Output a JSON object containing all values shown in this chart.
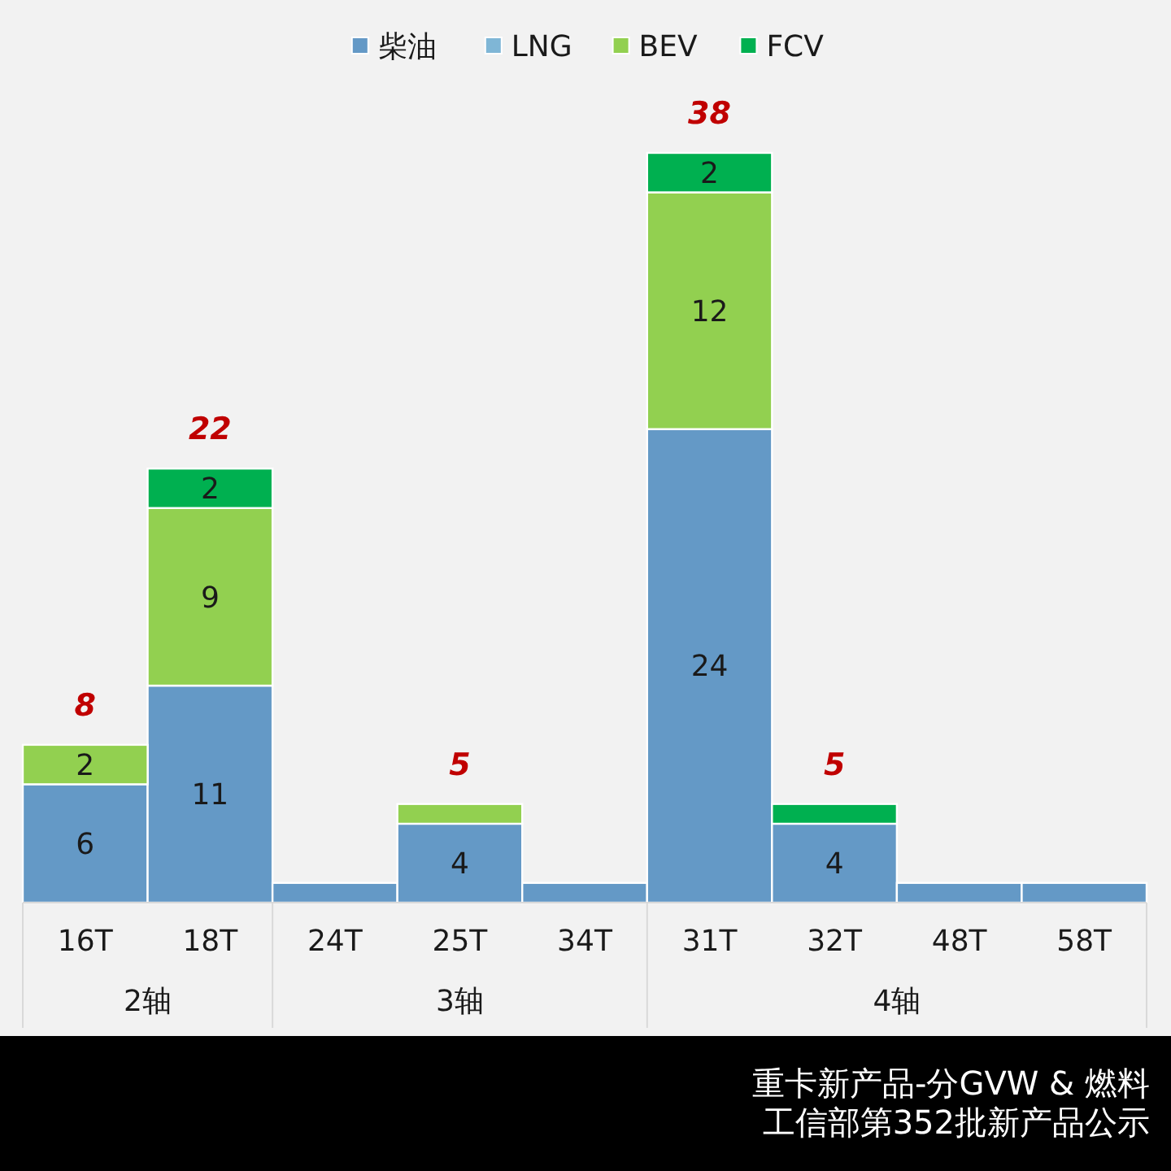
{
  "chart_data": {
    "type": "bar",
    "stacked": true,
    "legend": "top",
    "categories": [
      "16T",
      "18T",
      "24T",
      "25T",
      "34T",
      "31T",
      "32T",
      "48T",
      "58T"
    ],
    "series": [
      {
        "name": "柴油",
        "color": "#6499c6",
        "values": [
          6,
          11,
          1,
          4,
          1,
          24,
          4,
          1,
          1
        ],
        "value_labels": [
          "6",
          "11",
          null,
          "4",
          null,
          "24",
          "4",
          null,
          null
        ]
      },
      {
        "name": "LNG",
        "color": "#7fb6d6",
        "values": [
          0,
          0,
          0,
          0,
          0,
          0,
          0,
          0,
          0
        ]
      },
      {
        "name": "BEV",
        "color": "#92d050",
        "values": [
          2,
          9,
          0,
          1,
          0,
          12,
          0,
          0,
          0
        ],
        "value_labels": [
          "2",
          "9",
          null,
          null,
          null,
          "12",
          null,
          null,
          null
        ]
      },
      {
        "name": "FCV",
        "color": "#00b050",
        "values": [
          0,
          2,
          0,
          0,
          0,
          2,
          1,
          0,
          0
        ],
        "value_labels": [
          null,
          "2",
          null,
          null,
          null,
          "2",
          null,
          null,
          null
        ]
      }
    ],
    "totals": [
      "8",
      "22",
      null,
      "5",
      null,
      "38",
      "5",
      null,
      null
    ],
    "annotations": [
      "2轴",
      "3轴",
      "4轴",
      "重卡新产品-分GVW & 燃料",
      "工信部第352批新产品公示"
    ]
  }
}
